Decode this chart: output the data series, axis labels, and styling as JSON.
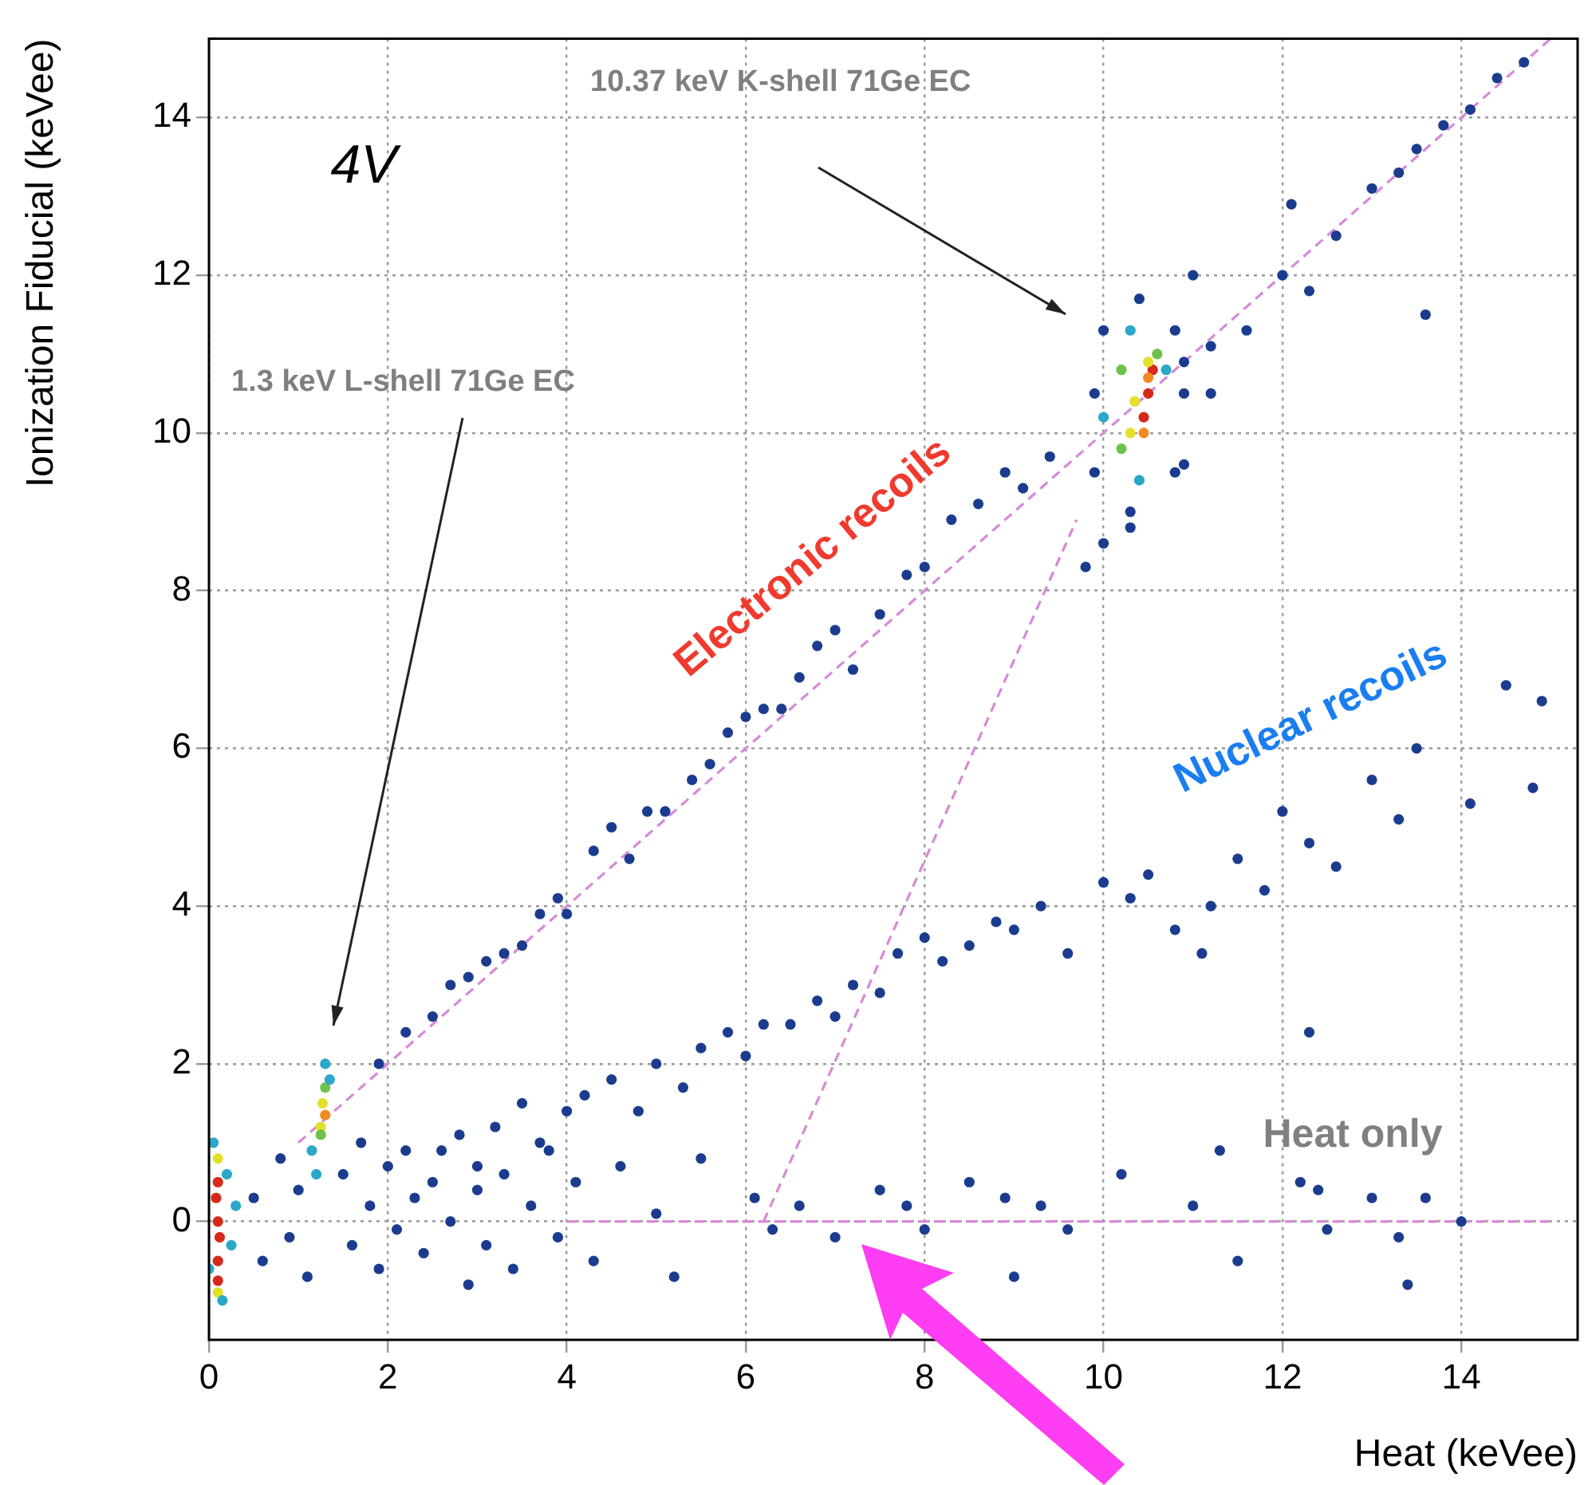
{
  "chart_data": {
    "type": "scatter",
    "xlabel": "Heat (keVee)",
    "ylabel": "Ionization Fiducial (keVee)",
    "xlim": [
      0,
      15.3
    ],
    "ylim": [
      -1.5,
      15
    ],
    "xticks": [
      0,
      2,
      4,
      6,
      8,
      10,
      12,
      14
    ],
    "yticks": [
      0,
      2,
      4,
      6,
      8,
      10,
      12,
      14
    ],
    "grid": true,
    "marker": "circle",
    "annotations": [
      "1.3 keV L-shell 71Ge EC",
      "10.37 keV K-shell 71Ge EC",
      "4V",
      "Electronic recoils",
      "Nuclear recoils",
      "Heat only"
    ],
    "series": [
      {
        "color": "#1b3c8e",
        "x": [
          1.9,
          2.2,
          2.5,
          2.7,
          2.9,
          3.1,
          3.3,
          3.5,
          3.7,
          3.9,
          4.0,
          4.3,
          4.5,
          4.7,
          4.9,
          5.1,
          5.4,
          5.6,
          5.8,
          6.0,
          6.2,
          6.4,
          6.6,
          6.8,
          7.0,
          7.2,
          7.5,
          7.8,
          8.0,
          8.3,
          8.6,
          8.9,
          9.1,
          9.4,
          10.9,
          11.2,
          11.6,
          12.0,
          12.3,
          12.6,
          13.0,
          13.3,
          13.5,
          13.8,
          14.1,
          14.4,
          14.7,
          13.6,
          12.1,
          11.0,
          10.0,
          9.8,
          10.3,
          10.9,
          11.2,
          2.2,
          2.5,
          2.8,
          3.0,
          3.2,
          3.5,
          3.7,
          4.0,
          4.2,
          4.5,
          4.8,
          5.0,
          5.3,
          5.5,
          5.8,
          6.0,
          6.2,
          6.5,
          6.8,
          7.0,
          7.2,
          7.5,
          7.7,
          8.0,
          8.2,
          8.5,
          8.8,
          9.0,
          9.3,
          9.6,
          10.0,
          10.3,
          10.5,
          10.8,
          11.2,
          11.5,
          11.8,
          12.0,
          12.3,
          12.6,
          13.0,
          13.3,
          13.5,
          14.1,
          14.5,
          14.9,
          14.8,
          12.3,
          11.1,
          0.5,
          0.6,
          0.8,
          0.9,
          1.0,
          1.1,
          1.5,
          1.6,
          1.7,
          1.8,
          1.9,
          2.0,
          2.1,
          2.3,
          2.4,
          2.6,
          2.7,
          2.9,
          3.0,
          3.1,
          3.3,
          3.4,
          3.6,
          3.8,
          3.9,
          4.1,
          4.3,
          4.6,
          5.0,
          5.2,
          5.5,
          6.1,
          6.3,
          6.6,
          7.0,
          7.5,
          8.0,
          8.5,
          9.0,
          9.3,
          9.6,
          10.2,
          11.0,
          11.5,
          12.2,
          12.5,
          13.0,
          13.3,
          13.6,
          14.0,
          12.4,
          11.3,
          13.4,
          8.9,
          7.8,
          9.9,
          10.9,
          10.4,
          10.3,
          10.0,
          10.8,
          9.9,
          10.8
        ],
        "values": [
          2.0,
          2.4,
          2.6,
          3.0,
          3.1,
          3.3,
          3.4,
          3.5,
          3.9,
          4.1,
          3.9,
          4.7,
          5.0,
          4.6,
          5.2,
          5.2,
          5.6,
          5.8,
          6.2,
          6.4,
          6.5,
          6.5,
          6.9,
          7.3,
          7.5,
          7.0,
          7.7,
          8.2,
          8.3,
          8.9,
          9.1,
          9.5,
          9.3,
          9.7,
          10.9,
          11.1,
          11.3,
          12.0,
          11.8,
          12.5,
          13.1,
          13.3,
          13.6,
          13.9,
          14.1,
          14.5,
          14.7,
          11.5,
          12.9,
          12.0,
          8.6,
          8.3,
          8.8,
          9.6,
          10.5,
          0.9,
          0.5,
          1.1,
          0.7,
          1.2,
          1.5,
          1.0,
          1.4,
          1.6,
          1.8,
          1.4,
          2.0,
          1.7,
          2.2,
          2.4,
          2.1,
          2.5,
          2.5,
          2.8,
          2.6,
          3.0,
          2.9,
          3.4,
          3.6,
          3.3,
          3.5,
          3.8,
          3.7,
          4.0,
          3.4,
          4.3,
          4.1,
          4.4,
          3.7,
          4.0,
          4.6,
          4.2,
          5.2,
          4.8,
          4.5,
          5.6,
          5.1,
          6.0,
          5.3,
          6.8,
          6.6,
          5.5,
          2.4,
          3.4,
          0.3,
          -0.5,
          0.8,
          -0.2,
          0.4,
          -0.7,
          0.6,
          -0.3,
          1.0,
          0.2,
          -0.6,
          0.7,
          -0.1,
          0.3,
          -0.4,
          0.9,
          0.0,
          -0.8,
          0.4,
          -0.3,
          0.6,
          -0.6,
          0.2,
          0.9,
          -0.2,
          0.5,
          -0.5,
          0.7,
          0.1,
          -0.7,
          0.8,
          0.3,
          -0.1,
          0.2,
          -0.2,
          0.4,
          -0.1,
          0.5,
          -0.7,
          0.2,
          -0.1,
          0.6,
          0.2,
          -0.5,
          0.5,
          -0.1,
          0.3,
          -0.2,
          0.3,
          0.0,
          0.4,
          0.9,
          -0.8,
          0.3,
          0.2,
          10.5,
          10.5,
          11.7,
          9.0,
          11.3,
          9.5,
          9.5,
          11.3
        ]
      },
      {
        "color": "#2aa7c9",
        "x": [
          0.05,
          0.15,
          0.2,
          0.0,
          0.3,
          0.25,
          1.2,
          1.3,
          1.15,
          1.35,
          10.0,
          10.7,
          10.3,
          10.4
        ],
        "values": [
          1.0,
          -1.0,
          0.6,
          -0.6,
          0.2,
          -0.3,
          0.6,
          2.0,
          0.9,
          1.8,
          10.2,
          10.8,
          11.3,
          9.4
        ]
      },
      {
        "color": "#6cc24a",
        "x": [
          1.25,
          1.3,
          10.2,
          10.6,
          10.2
        ],
        "values": [
          1.1,
          1.7,
          9.8,
          11.0,
          10.8
        ]
      },
      {
        "color": "#e3e02a",
        "x": [
          0.1,
          0.1,
          1.27,
          1.25,
          10.3,
          10.5,
          10.35
        ],
        "values": [
          0.8,
          -0.9,
          1.5,
          1.2,
          10.0,
          10.9,
          10.4
        ]
      },
      {
        "color": "#f08a24",
        "x": [
          1.3,
          10.45,
          10.5
        ],
        "values": [
          1.35,
          10.0,
          10.7
        ]
      },
      {
        "color": "#d42a1a",
        "x": [
          0.1,
          0.1,
          0.1,
          0.08,
          0.12,
          0.1,
          10.5,
          10.45,
          10.55
        ],
        "values": [
          0.5,
          0.0,
          -0.5,
          0.3,
          -0.2,
          -0.75,
          10.5,
          10.2,
          10.8
        ]
      },
      {
        "type": "line",
        "color": "#d68ad8",
        "line_style": "dashed",
        "marker": "none",
        "x": [
          1.0,
          15.0
        ],
        "values": [
          1.0,
          15.0
        ]
      },
      {
        "type": "line",
        "color": "#d68ad8",
        "line_style": "dashed",
        "marker": "none",
        "x": [
          4.0,
          15.0
        ],
        "values": [
          0,
          0
        ]
      },
      {
        "type": "line",
        "color": "#d68ad8",
        "line_style": "dashed",
        "marker": "none",
        "x": [
          6.2,
          9.7
        ],
        "values": [
          0,
          8.9
        ]
      }
    ]
  }
}
